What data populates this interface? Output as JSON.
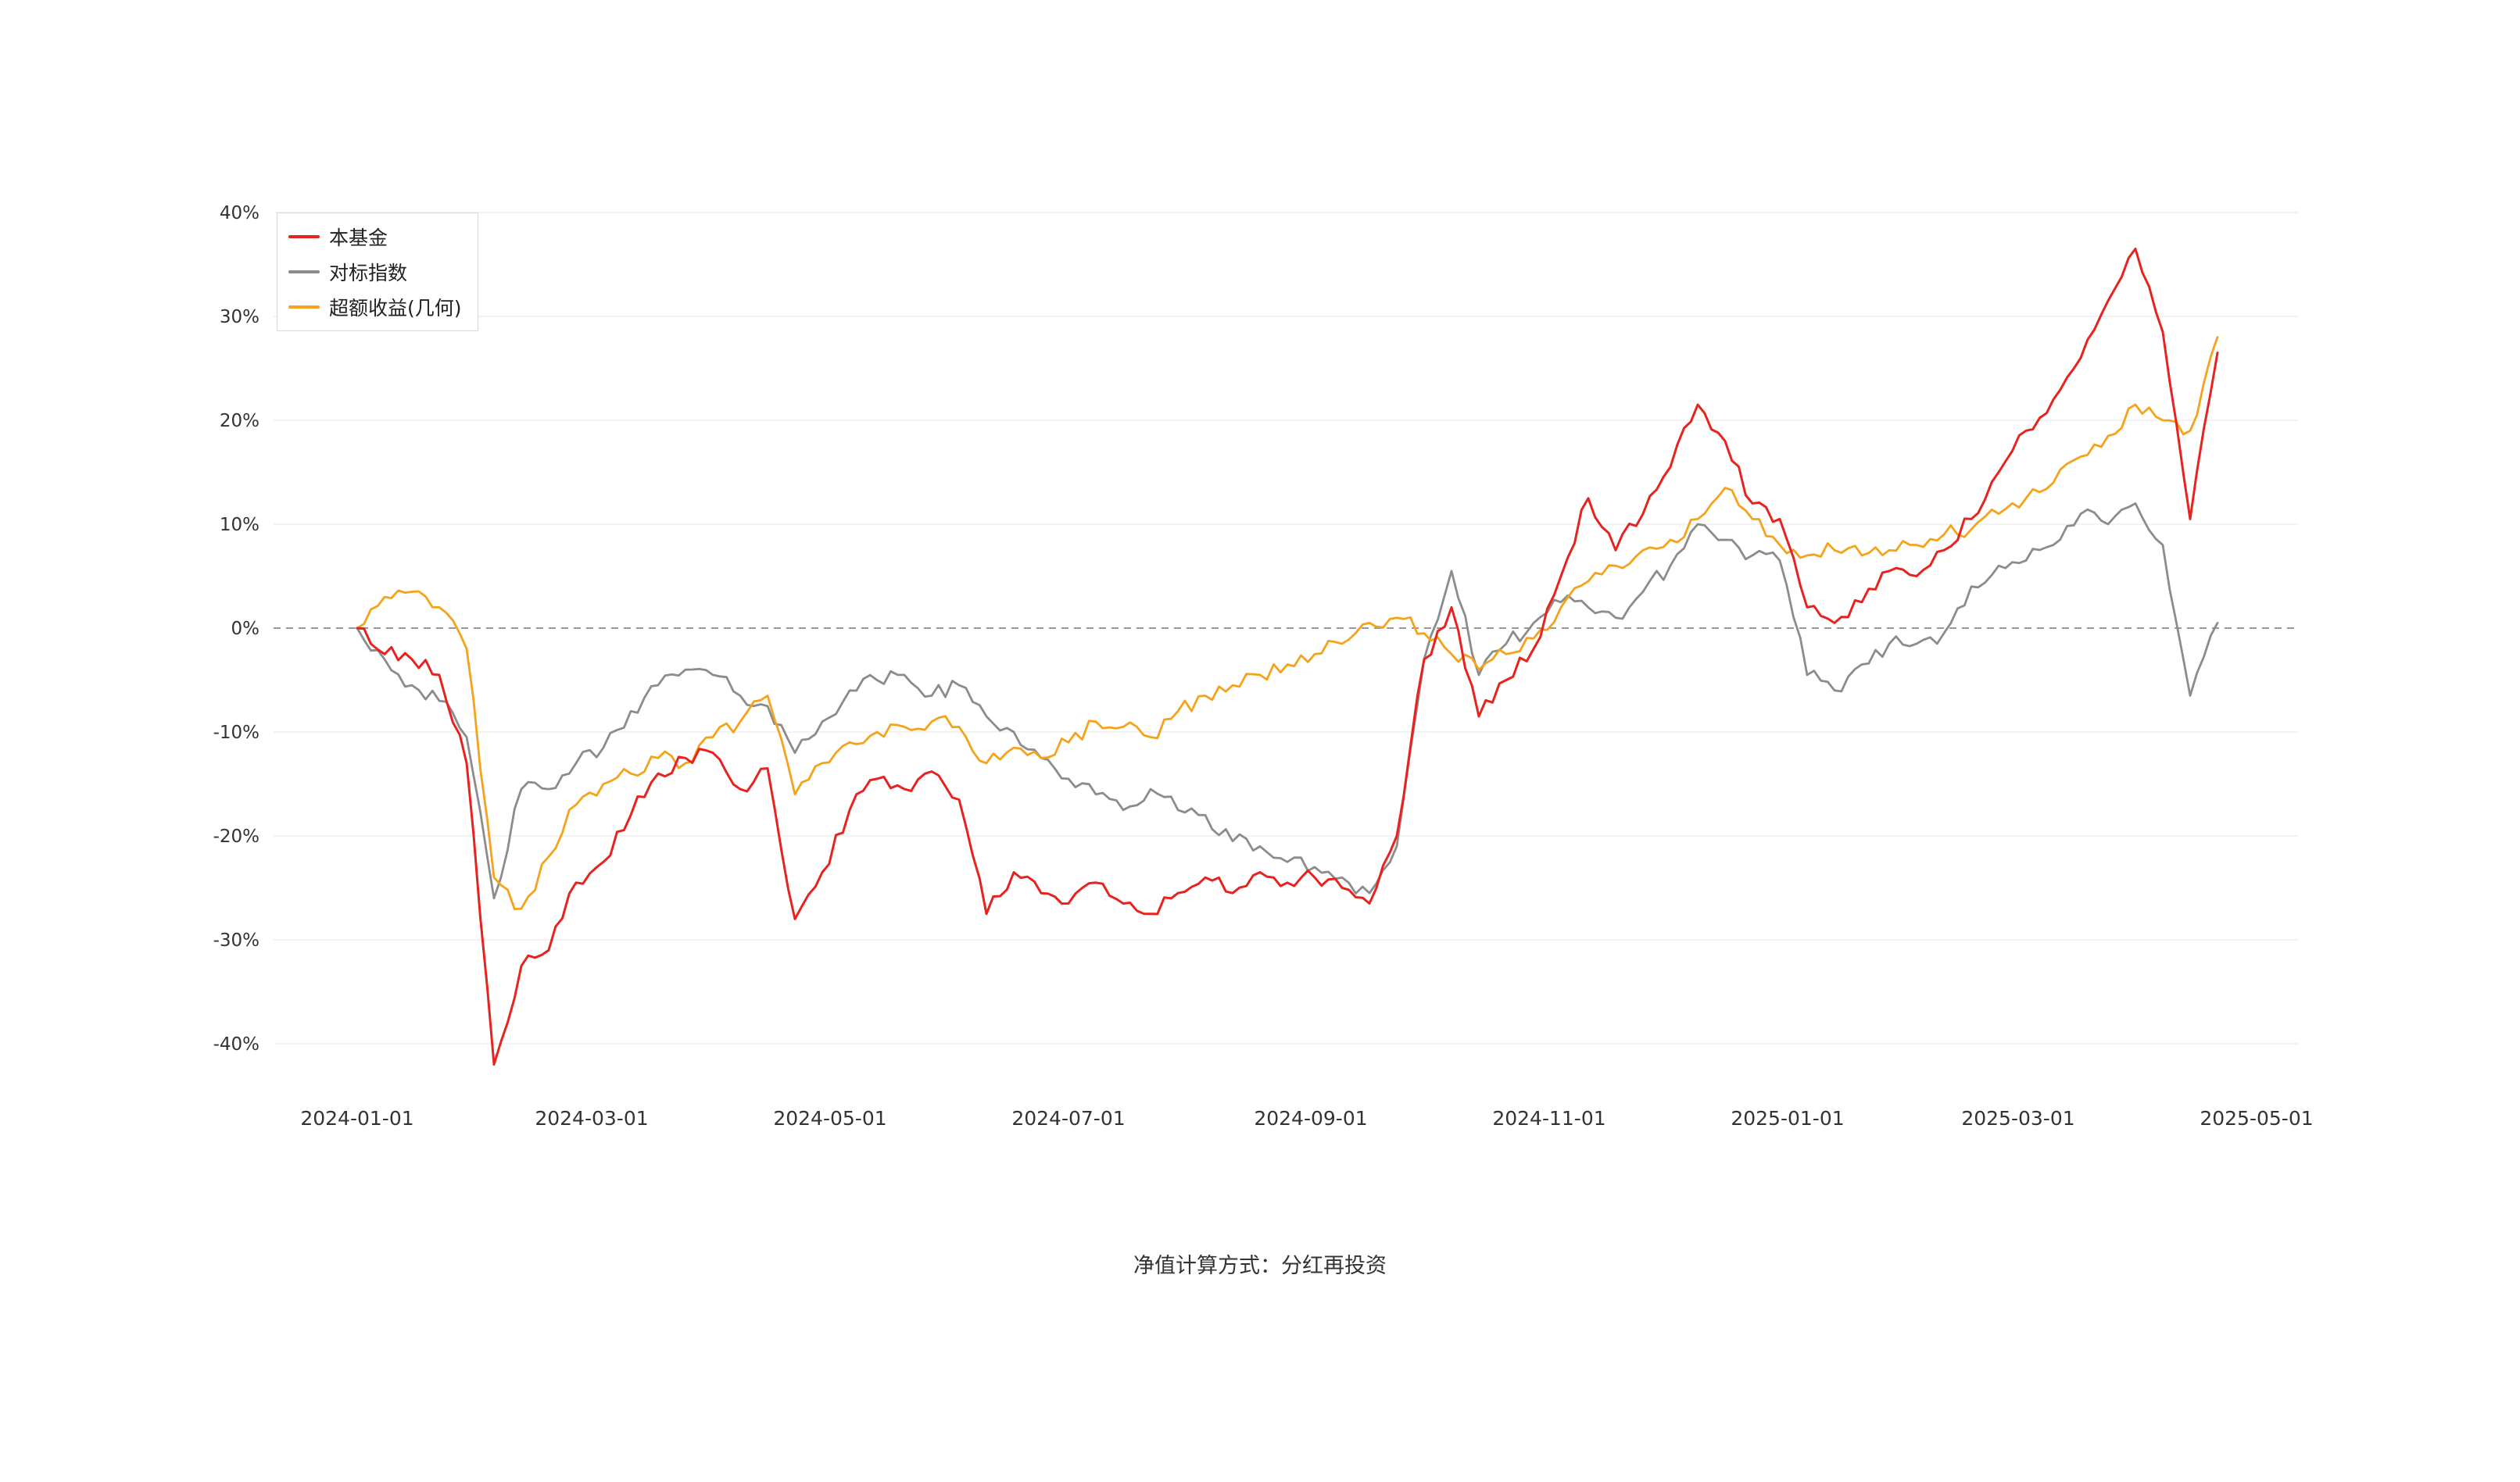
{
  "page": {
    "background": "#ffffff"
  },
  "caption": "净值计算方式：分红再投资",
  "legend": [
    {
      "label": "本基金",
      "color": "#e8231f"
    },
    {
      "label": "对标指数",
      "color": "#8c8c8c"
    },
    {
      "label": "超额收益(几何)",
      "color": "#f5a31a"
    }
  ],
  "chart_data": {
    "type": "line",
    "title": "",
    "xlabel": "",
    "ylabel": "",
    "grid": true,
    "legend_position": "top-left",
    "zero_line": "dashed",
    "ylim": [
      -45,
      42
    ],
    "y_ticks": [
      "40%",
      "30%",
      "20%",
      "10%",
      "0%",
      "-10%",
      "-20%",
      "-30%",
      "-40%"
    ],
    "y_tick_values": [
      40,
      30,
      20,
      10,
      0,
      -10,
      -20,
      -30,
      -40
    ],
    "x_tick_labels": [
      "2024-01-01",
      "2024-03-01",
      "2024-05-01",
      "2024-07-01",
      "2024-09-01",
      "2024-11-01",
      "2025-01-01",
      "2025-03-01",
      "2025-05-01"
    ],
    "x": [
      "2024-01-01",
      "2024-01-08",
      "2024-01-15",
      "2024-01-22",
      "2024-01-29",
      "2024-02-05",
      "2024-02-12",
      "2024-02-19",
      "2024-02-26",
      "2024-03-04",
      "2024-03-11",
      "2024-03-18",
      "2024-03-25",
      "2024-04-01",
      "2024-04-08",
      "2024-04-15",
      "2024-04-22",
      "2024-04-29",
      "2024-05-06",
      "2024-05-13",
      "2024-05-20",
      "2024-05-27",
      "2024-06-03",
      "2024-06-10",
      "2024-06-17",
      "2024-06-24",
      "2024-07-01",
      "2024-07-08",
      "2024-07-15",
      "2024-07-22",
      "2024-07-29",
      "2024-08-05",
      "2024-08-12",
      "2024-08-19",
      "2024-08-26",
      "2024-09-02",
      "2024-09-09",
      "2024-09-16",
      "2024-09-23",
      "2024-09-30",
      "2024-10-07",
      "2024-10-14",
      "2024-10-21",
      "2024-10-28",
      "2024-11-04",
      "2024-11-11",
      "2024-11-18",
      "2024-11-25",
      "2024-12-02",
      "2024-12-09",
      "2024-12-16",
      "2024-12-23",
      "2024-12-30",
      "2025-01-06",
      "2025-01-13",
      "2025-01-20",
      "2025-01-27",
      "2025-02-03",
      "2025-02-10",
      "2025-02-17",
      "2025-02-24",
      "2025-03-03",
      "2025-03-10",
      "2025-03-17",
      "2025-03-24",
      "2025-03-31",
      "2025-04-07",
      "2025-04-14",
      "2025-04-21"
    ],
    "series": [
      {
        "name": "本基金",
        "color": "#e8231f",
        "unit": "%",
        "values": [
          0,
          -2.5,
          -3,
          -4.5,
          -13,
          -42,
          -32.5,
          -31,
          -24.5,
          -22.5,
          -18,
          -14,
          -12.5,
          -12,
          -15.5,
          -13.5,
          -28,
          -23.5,
          -17.5,
          -14.5,
          -15.5,
          -13.8,
          -16.5,
          -27.5,
          -23.5,
          -25.5,
          -26.5,
          -24.5,
          -26.5,
          -27.5,
          -25.5,
          -24,
          -25.5,
          -23.5,
          -24.5,
          -24,
          -25,
          -26.5,
          -20,
          -3,
          2,
          -8.5,
          -5,
          -2,
          5,
          12.5,
          7.5,
          11,
          15.5,
          21.5,
          18,
          12,
          10.5,
          2,
          0.5,
          2.5,
          5.5,
          5,
          7.5,
          10.5,
          15,
          19,
          22,
          26,
          31.5,
          36.5,
          28.5,
          10.5,
          26.5
        ]
      },
      {
        "name": "对标指数",
        "color": "#8c8c8c",
        "unit": "%",
        "values": [
          0,
          -3,
          -5.5,
          -7,
          -10.5,
          -26,
          -15.5,
          -15.5,
          -13,
          -11.5,
          -8,
          -5.5,
          -4,
          -4.5,
          -6.5,
          -7.5,
          -12,
          -9,
          -6,
          -5,
          -4.5,
          -6.5,
          -5.5,
          -8.5,
          -10,
          -12.5,
          -14.5,
          -16,
          -17.5,
          -15.5,
          -17.5,
          -18,
          -20.5,
          -21,
          -22.5,
          -23,
          -24,
          -25.5,
          -21,
          -3,
          5.5,
          -4.5,
          -1.5,
          0.5,
          2.5,
          2,
          1,
          3.5,
          6,
          10,
          8.5,
          7,
          6.5,
          -4.5,
          -6,
          -3.5,
          -1.5,
          -1.5,
          -0.5,
          4,
          6,
          6.5,
          8,
          11,
          10,
          12,
          8,
          -6.5,
          0.5
        ]
      },
      {
        "name": "超额收益(几何)",
        "color": "#f5a31a",
        "unit": "%",
        "values": [
          0,
          3,
          3.5,
          2,
          -2,
          -24,
          -27,
          -22,
          -17,
          -15,
          -14,
          -12.5,
          -13,
          -10.5,
          -9,
          -6.5,
          -16,
          -13,
          -11,
          -10,
          -9.5,
          -9,
          -9.5,
          -13,
          -11.5,
          -12.5,
          -11,
          -9,
          -9.5,
          -10.5,
          -8,
          -6.5,
          -5.5,
          -4.5,
          -3.5,
          -2.5,
          -1.5,
          0.5,
          1,
          -0.5,
          -2.5,
          -4,
          -2.5,
          -1,
          2,
          4.5,
          6,
          7.5,
          8.5,
          10.5,
          13.5,
          10.5,
          8,
          7,
          7.5,
          7,
          7.5,
          8,
          9,
          9.5,
          11,
          12.5,
          14,
          16.5,
          18.5,
          21.5,
          20,
          19,
          28
        ]
      }
    ]
  }
}
